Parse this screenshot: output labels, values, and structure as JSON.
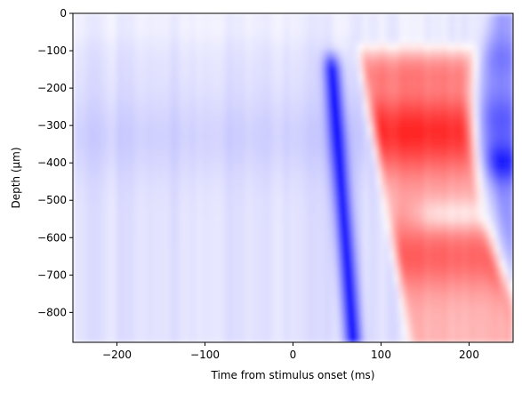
{
  "chart_data": {
    "type": "heatmap",
    "title": "",
    "xlabel": "Time from stimulus onset (ms)",
    "ylabel": "Depth (μm)",
    "xlim": [
      -250,
      250
    ],
    "ylim": [
      -880,
      0
    ],
    "xticks": [
      -200,
      -100,
      0,
      100,
      200
    ],
    "xtick_labels": [
      "−200",
      "−100",
      "0",
      "100",
      "200"
    ],
    "yticks": [
      0,
      -100,
      -200,
      -300,
      -400,
      -500,
      -600,
      -700,
      -800
    ],
    "ytick_labels": [
      "0",
      "−100",
      "−200",
      "−300",
      "−400",
      "−500",
      "−600",
      "−700",
      "−800"
    ],
    "colormap": "bwr",
    "colors": {
      "negative": "#0000ff",
      "zero": "#ffffff",
      "positive": "#ff0000"
    },
    "grid": false,
    "colorbar": false,
    "features": [
      {
        "name": "baseline",
        "time_range": [
          -250,
          40
        ],
        "depth_range": [
          -880,
          0
        ],
        "value": -0.12
      },
      {
        "name": "early sink",
        "time_range": [
          35,
          60
        ],
        "depth_range": [
          -880,
          -80
        ],
        "value": -0.9
      },
      {
        "name": "source",
        "time_range": [
          60,
          200
        ],
        "depth_range": [
          -880,
          -90
        ],
        "value": 0.75
      },
      {
        "name": "late sink",
        "time_range": [
          190,
          250
        ],
        "depth_range": [
          -700,
          -50
        ],
        "value": -0.5
      }
    ]
  }
}
